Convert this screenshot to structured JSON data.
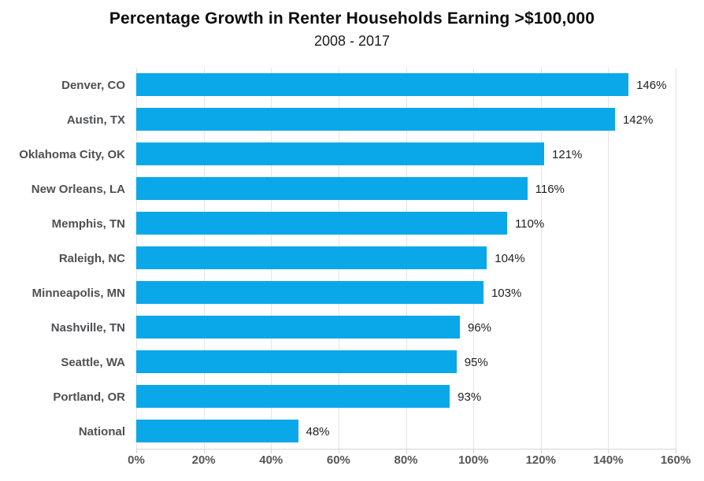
{
  "chart_data": {
    "type": "bar",
    "orientation": "horizontal",
    "title": "Percentage Growth in Renter Households Earning >$100,000",
    "subtitle": "2008 - 2017",
    "categories": [
      "Denver, CO",
      "Austin, TX",
      "Oklahoma City, OK",
      "New Orleans, LA",
      "Memphis, TN",
      "Raleigh, NC",
      "Minneapolis, MN",
      "Nashville, TN",
      "Seattle, WA",
      "Portland, OR",
      "National"
    ],
    "values": [
      146,
      142,
      121,
      116,
      110,
      104,
      103,
      96,
      95,
      93,
      48
    ],
    "value_labels": [
      "146%",
      "142%",
      "121%",
      "116%",
      "110%",
      "104%",
      "103%",
      "96%",
      "95%",
      "93%",
      "48%"
    ],
    "xlabel": "",
    "ylabel": "",
    "xlim": [
      0,
      160
    ],
    "xticks": [
      0,
      20,
      40,
      60,
      80,
      100,
      120,
      140,
      160
    ],
    "xtick_labels": [
      "0%",
      "20%",
      "40%",
      "60%",
      "80%",
      "100%",
      "120%",
      "140%",
      "160%"
    ],
    "grid": "vertical-gridlines-on",
    "legend": "none",
    "colors": {
      "bar": "#0aa8e9",
      "gridline": "#e4e4e6",
      "axis_line": "#d6d6d8",
      "category_label": "#4e5054",
      "value_label": "#1e1e1e",
      "tick_label": "#555659",
      "title": "#0d0d0d",
      "background": "#ffffff"
    }
  }
}
